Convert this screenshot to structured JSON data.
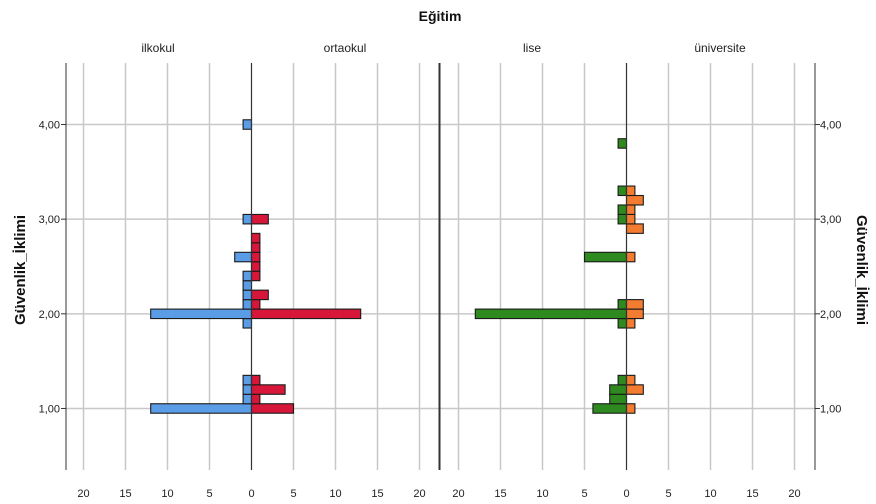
{
  "chart_data": {
    "type": "bar",
    "subtype": "back-to-back histogram (population pyramid)",
    "title": "Eğitim",
    "ylabel": "Güvenlik_İklimi",
    "ylim": [
      0.35,
      4.65
    ],
    "y_ticks": [
      "1,00",
      "2,00",
      "3,00",
      "4,00"
    ],
    "x_ticks": [
      "20",
      "15",
      "10",
      "5",
      "0",
      "5",
      "10",
      "15",
      "20"
    ],
    "xlim": [
      0,
      20
    ],
    "bin_width": 0.1,
    "grid": true,
    "panels": [
      {
        "left": {
          "name": "ilkokul",
          "color": "#5b9ce6",
          "bins": [
            {
              "y": 1.0,
              "count": 12
            },
            {
              "y": 1.1,
              "count": 1
            },
            {
              "y": 1.2,
              "count": 1
            },
            {
              "y": 1.3,
              "count": 1
            },
            {
              "y": 1.9,
              "count": 1
            },
            {
              "y": 2.0,
              "count": 12
            },
            {
              "y": 2.1,
              "count": 1
            },
            {
              "y": 2.2,
              "count": 1
            },
            {
              "y": 2.3,
              "count": 1
            },
            {
              "y": 2.4,
              "count": 1
            },
            {
              "y": 2.6,
              "count": 2
            },
            {
              "y": 3.0,
              "count": 1
            },
            {
              "y": 4.0,
              "count": 1
            }
          ]
        },
        "right": {
          "name": "ortaokul",
          "color": "#d6173a",
          "bins": [
            {
              "y": 1.0,
              "count": 5
            },
            {
              "y": 1.1,
              "count": 1
            },
            {
              "y": 1.2,
              "count": 4
            },
            {
              "y": 1.3,
              "count": 1
            },
            {
              "y": 2.0,
              "count": 13
            },
            {
              "y": 2.1,
              "count": 1
            },
            {
              "y": 2.2,
              "count": 2
            },
            {
              "y": 2.4,
              "count": 1
            },
            {
              "y": 2.5,
              "count": 1
            },
            {
              "y": 2.6,
              "count": 1
            },
            {
              "y": 2.7,
              "count": 1
            },
            {
              "y": 2.8,
              "count": 1
            },
            {
              "y": 3.0,
              "count": 2
            }
          ]
        }
      },
      {
        "left": {
          "name": "lise",
          "color": "#2e8a1e",
          "bins": [
            {
              "y": 1.0,
              "count": 4
            },
            {
              "y": 1.1,
              "count": 2
            },
            {
              "y": 1.2,
              "count": 2
            },
            {
              "y": 1.3,
              "count": 1
            },
            {
              "y": 1.9,
              "count": 1
            },
            {
              "y": 2.0,
              "count": 18
            },
            {
              "y": 2.1,
              "count": 1
            },
            {
              "y": 2.6,
              "count": 5
            },
            {
              "y": 3.0,
              "count": 1
            },
            {
              "y": 3.1,
              "count": 1
            },
            {
              "y": 3.3,
              "count": 1
            },
            {
              "y": 3.8,
              "count": 1
            }
          ]
        },
        "right": {
          "name": "üniversite",
          "color": "#f47c30",
          "bins": [
            {
              "y": 1.0,
              "count": 1
            },
            {
              "y": 1.2,
              "count": 2
            },
            {
              "y": 1.3,
              "count": 1
            },
            {
              "y": 1.9,
              "count": 1
            },
            {
              "y": 2.0,
              "count": 2
            },
            {
              "y": 2.1,
              "count": 2
            },
            {
              "y": 2.6,
              "count": 1
            },
            {
              "y": 2.9,
              "count": 2
            },
            {
              "y": 3.0,
              "count": 1
            },
            {
              "y": 3.1,
              "count": 1
            },
            {
              "y": 3.2,
              "count": 2
            },
            {
              "y": 3.3,
              "count": 1
            }
          ]
        }
      }
    ]
  }
}
